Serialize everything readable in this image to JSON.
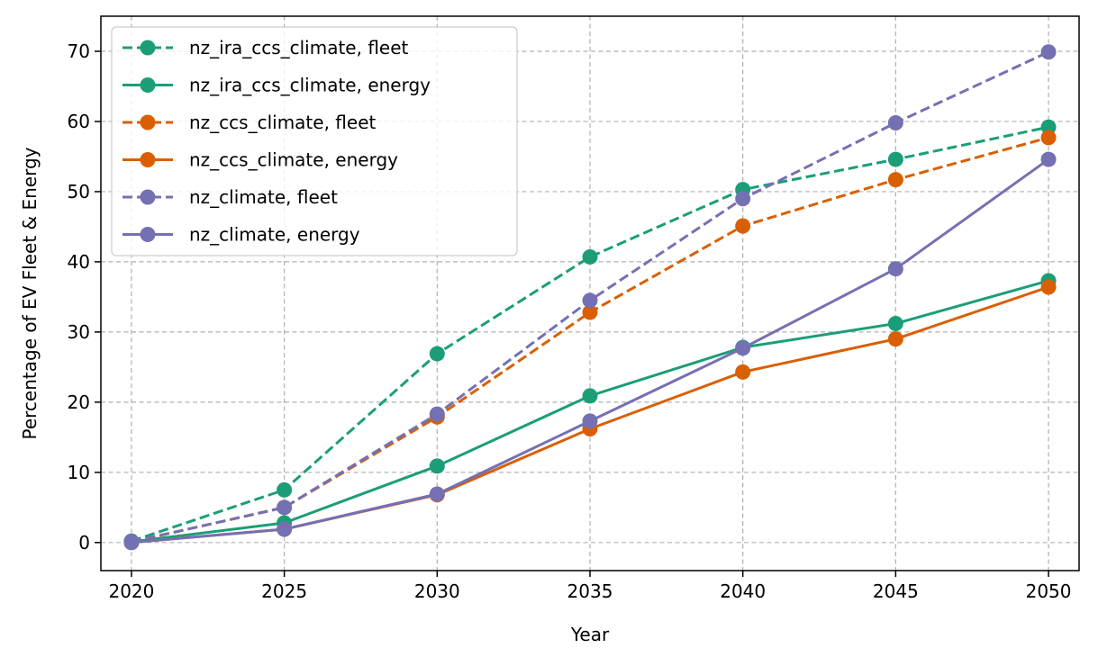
{
  "chart_data": {
    "type": "line",
    "xlabel": "Year",
    "ylabel": "Percentage of EV Fleet & Energy",
    "x": [
      2020,
      2025,
      2030,
      2035,
      2040,
      2045,
      2050
    ],
    "xticks": [
      2020,
      2025,
      2030,
      2035,
      2040,
      2045,
      2050
    ],
    "yticks": [
      0,
      10,
      20,
      30,
      40,
      50,
      60,
      70
    ],
    "xlim": [
      2019,
      2051
    ],
    "ylim": [
      -4,
      75
    ],
    "grid": true,
    "legend_position": "top-left",
    "series": [
      {
        "name": "nz_ira_ccs_climate, fleet",
        "color": "#1b9e77",
        "linestyle": "dashed",
        "values": [
          0.2,
          7.5,
          26.9,
          40.7,
          50.3,
          54.6,
          59.2
        ]
      },
      {
        "name": "nz_ira_ccs_climate, energy",
        "color": "#1b9e77",
        "linestyle": "solid",
        "values": [
          0.1,
          2.8,
          10.9,
          20.9,
          27.8,
          31.2,
          37.3
        ]
      },
      {
        "name": "nz_ccs_climate, fleet",
        "color": "#d95f02",
        "linestyle": "dashed",
        "values": [
          0.1,
          5.0,
          17.9,
          32.8,
          45.1,
          51.7,
          57.7
        ]
      },
      {
        "name": "nz_ccs_climate, energy",
        "color": "#d95f02",
        "linestyle": "solid",
        "values": [
          0.0,
          1.9,
          6.8,
          16.2,
          24.3,
          29.0,
          36.4
        ]
      },
      {
        "name": "nz_climate, fleet",
        "color": "#7570b3",
        "linestyle": "dashed",
        "values": [
          0.1,
          5.0,
          18.3,
          34.5,
          49.0,
          59.8,
          69.9
        ]
      },
      {
        "name": "nz_climate, energy",
        "color": "#7570b3",
        "linestyle": "solid",
        "values": [
          0.0,
          1.9,
          6.9,
          17.3,
          27.7,
          39.0,
          54.6
        ]
      }
    ]
  }
}
